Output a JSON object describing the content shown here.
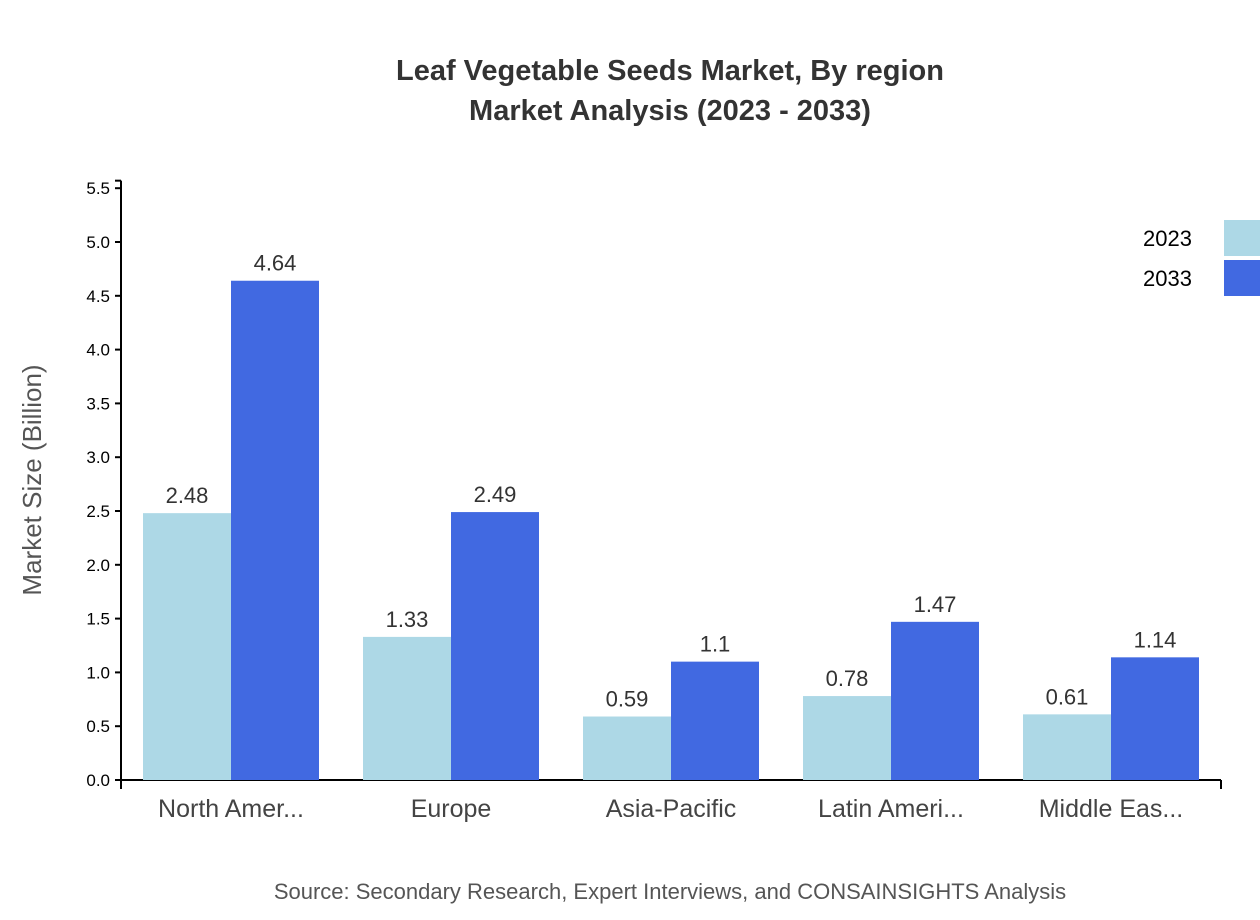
{
  "chart_data": {
    "type": "bar",
    "title_line1": "Leaf Vegetable Seeds Market, By region",
    "title_line2": "Market Analysis (2023 - 2033)",
    "xlabel": "",
    "ylabel": "Market Size (Billion)",
    "ylim": [
      0,
      5.57
    ],
    "yticks": [
      "0.0",
      "0.5",
      "1.0",
      "1.5",
      "2.0",
      "2.5",
      "3.0",
      "3.5",
      "4.0",
      "4.5",
      "5.0",
      "5.5"
    ],
    "categories": [
      "North Amer...",
      "Europe",
      "Asia-Pacific",
      "Latin Ameri...",
      "Middle Eas..."
    ],
    "series": [
      {
        "name": "2023",
        "color": "#add8e6",
        "values": [
          2.48,
          1.33,
          0.59,
          0.78,
          0.61
        ]
      },
      {
        "name": "2033",
        "color": "#4169e1",
        "values": [
          4.64,
          2.49,
          1.1,
          1.47,
          1.14
        ]
      }
    ],
    "legend_position": "top-right",
    "grid": false,
    "source": "Source: Secondary Research, Expert Interviews, and CONSAINSIGHTS Analysis"
  }
}
